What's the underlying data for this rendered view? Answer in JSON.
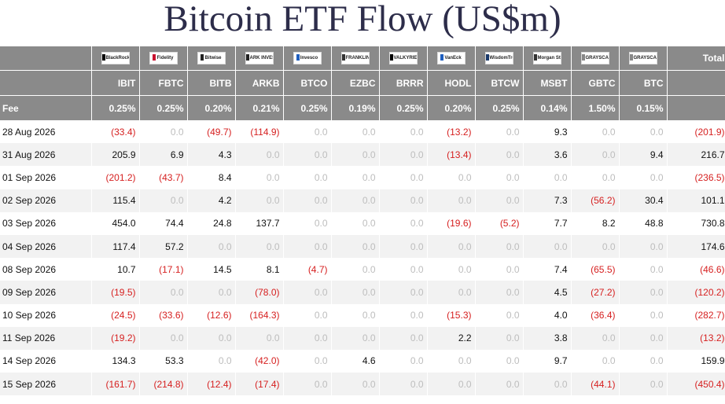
{
  "title": "Bitcoin ETF Flow (US$m)",
  "colors": {
    "header_bg": "#8a8a8a",
    "negative": "#d62020",
    "zero": "#bdbdbd",
    "stripe": "#f2f2f2"
  },
  "header": {
    "total_label": "Total",
    "fee_label": "Fee",
    "logos": [
      {
        "text": "BlackRock",
        "mark_color": "#000000"
      },
      {
        "text": "Fidelity",
        "mark_color": "#c8102e"
      },
      {
        "text": "Bitwise",
        "mark_color": "#222222"
      },
      {
        "text": "ARK INVEST",
        "mark_color": "#222222"
      },
      {
        "text": "Invesco",
        "mark_color": "#1f5fbf"
      },
      {
        "text": "FRANKLIN TEMPLETON",
        "mark_color": "#333333"
      },
      {
        "text": "VALKYRIE",
        "mark_color": "#000000"
      },
      {
        "text": "VanEck",
        "mark_color": "#1f5fbf"
      },
      {
        "text": "WisdomTree",
        "mark_color": "#1b3a6b"
      },
      {
        "text": "Morgan Stanley",
        "mark_color": "#333333"
      },
      {
        "text": "GRAYSCALE",
        "mark_color": "#888888"
      },
      {
        "text": "GRAYSCALE",
        "mark_color": "#888888"
      }
    ],
    "tickers": [
      "IBIT",
      "FBTC",
      "BITB",
      "ARKB",
      "BTCO",
      "EZBC",
      "BRRR",
      "HODL",
      "BTCW",
      "MSBT",
      "GBTC",
      "BTC"
    ],
    "fees": [
      "0.25%",
      "0.25%",
      "0.20%",
      "0.21%",
      "0.25%",
      "0.19%",
      "0.25%",
      "0.20%",
      "0.25%",
      "0.14%",
      "1.50%",
      "0.15%"
    ]
  },
  "rows": [
    {
      "date": "28 Aug 2026",
      "values": [
        "(33.4)",
        "0.0",
        "(49.7)",
        "(114.9)",
        "0.0",
        "0.0",
        "0.0",
        "(13.2)",
        "0.0",
        "9.3",
        "0.0",
        "0.0"
      ],
      "total": "(201.9)"
    },
    {
      "date": "31 Aug 2026",
      "values": [
        "205.9",
        "6.9",
        "4.3",
        "0.0",
        "0.0",
        "0.0",
        "0.0",
        "(13.4)",
        "0.0",
        "3.6",
        "0.0",
        "9.4"
      ],
      "total": "216.7"
    },
    {
      "date": "01 Sep 2026",
      "values": [
        "(201.2)",
        "(43.7)",
        "8.4",
        "0.0",
        "0.0",
        "0.0",
        "0.0",
        "0.0",
        "0.0",
        "0.0",
        "0.0",
        "0.0"
      ],
      "total": "(236.5)"
    },
    {
      "date": "02 Sep 2026",
      "values": [
        "115.4",
        "0.0",
        "4.2",
        "0.0",
        "0.0",
        "0.0",
        "0.0",
        "0.0",
        "0.0",
        "7.3",
        "(56.2)",
        "30.4"
      ],
      "total": "101.1"
    },
    {
      "date": "03 Sep 2026",
      "values": [
        "454.0",
        "74.4",
        "24.8",
        "137.7",
        "0.0",
        "0.0",
        "0.0",
        "(19.6)",
        "(5.2)",
        "7.7",
        "8.2",
        "48.8"
      ],
      "total": "730.8"
    },
    {
      "date": "04 Sep 2026",
      "values": [
        "117.4",
        "57.2",
        "0.0",
        "0.0",
        "0.0",
        "0.0",
        "0.0",
        "0.0",
        "0.0",
        "0.0",
        "0.0",
        "0.0"
      ],
      "total": "174.6"
    },
    {
      "date": "08 Sep 2026",
      "values": [
        "10.7",
        "(17.1)",
        "14.5",
        "8.1",
        "(4.7)",
        "0.0",
        "0.0",
        "0.0",
        "0.0",
        "7.4",
        "(65.5)",
        "0.0"
      ],
      "total": "(46.6)"
    },
    {
      "date": "09 Sep 2026",
      "values": [
        "(19.5)",
        "0.0",
        "0.0",
        "(78.0)",
        "0.0",
        "0.0",
        "0.0",
        "0.0",
        "0.0",
        "4.5",
        "(27.2)",
        "0.0"
      ],
      "total": "(120.2)"
    },
    {
      "date": "10 Sep 2026",
      "values": [
        "(24.5)",
        "(33.6)",
        "(12.6)",
        "(164.3)",
        "0.0",
        "0.0",
        "0.0",
        "(15.3)",
        "0.0",
        "4.0",
        "(36.4)",
        "0.0"
      ],
      "total": "(282.7)"
    },
    {
      "date": "11 Sep 2026",
      "values": [
        "(19.2)",
        "0.0",
        "0.0",
        "0.0",
        "0.0",
        "0.0",
        "0.0",
        "2.2",
        "0.0",
        "3.8",
        "0.0",
        "0.0"
      ],
      "total": "(13.2)"
    },
    {
      "date": "14 Sep 2026",
      "values": [
        "134.3",
        "53.3",
        "0.0",
        "(42.0)",
        "0.0",
        "4.6",
        "0.0",
        "0.0",
        "0.0",
        "9.7",
        "0.0",
        "0.0"
      ],
      "total": "159.9"
    },
    {
      "date": "15 Sep 2026",
      "values": [
        "(161.7)",
        "(214.8)",
        "(12.4)",
        "(17.4)",
        "0.0",
        "0.0",
        "0.0",
        "0.0",
        "0.0",
        "0.0",
        "(44.1)",
        "0.0"
      ],
      "total": "(450.4)"
    }
  ]
}
